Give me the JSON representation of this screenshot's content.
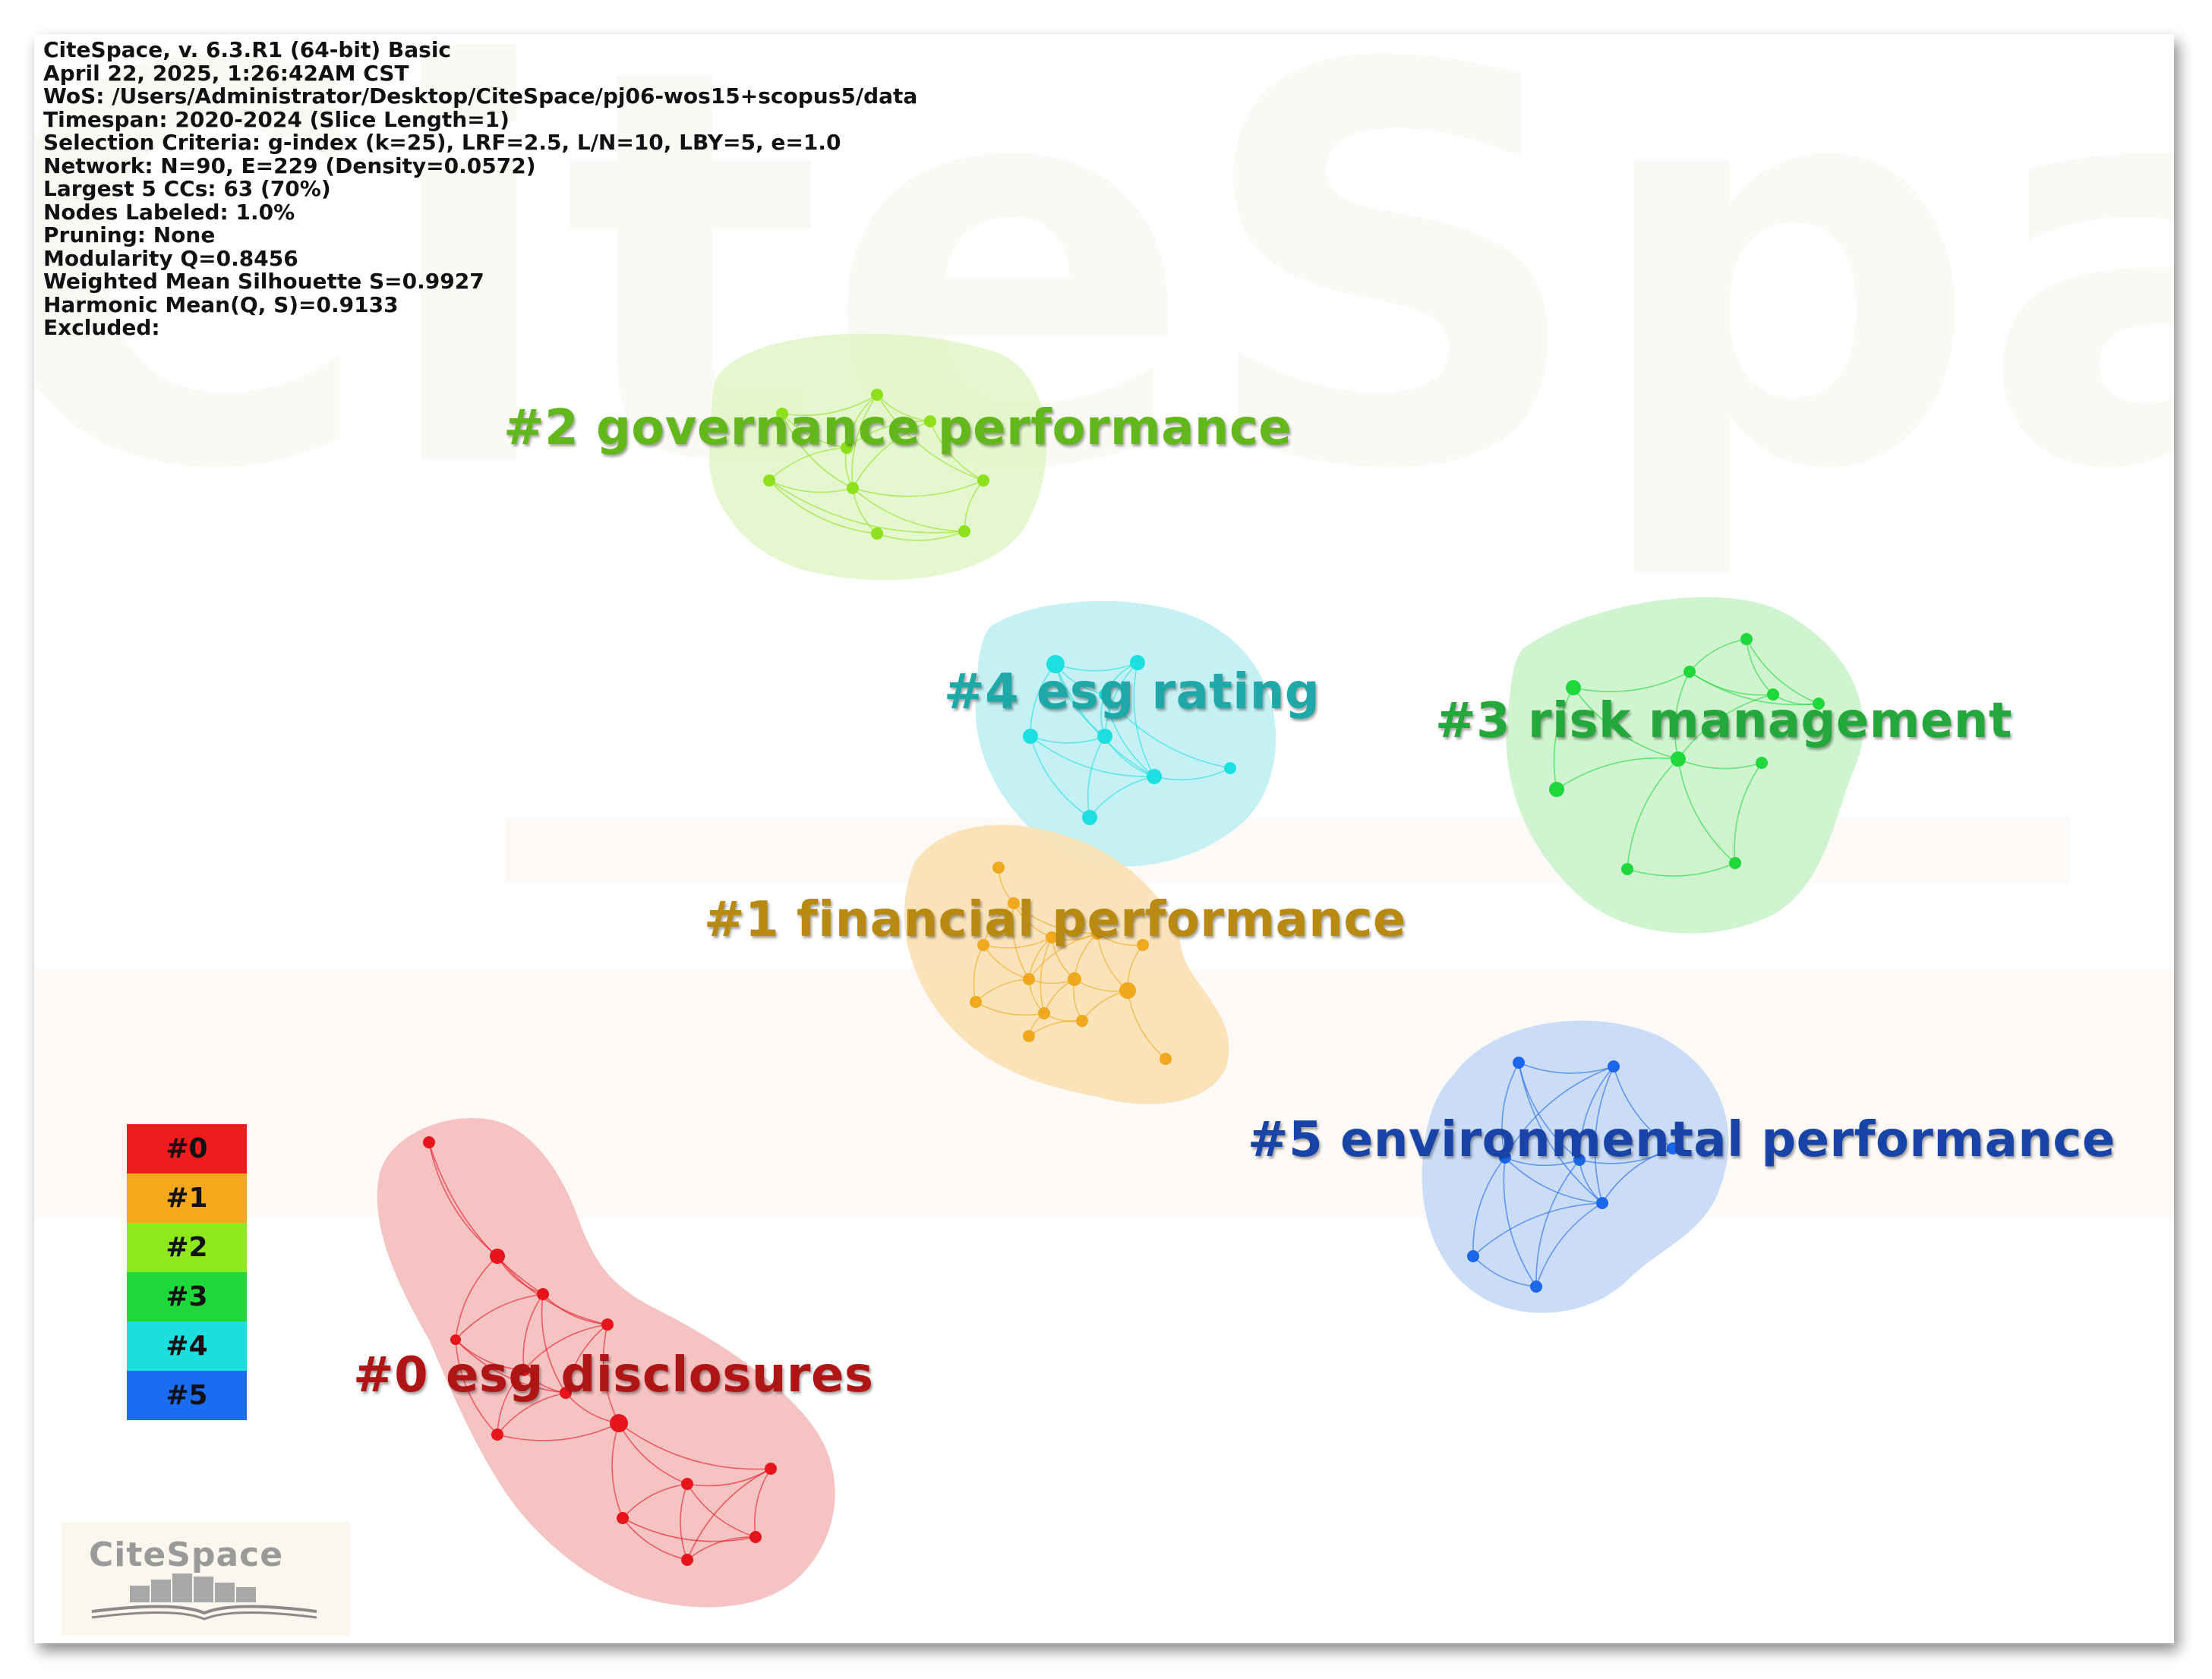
{
  "info": {
    "lines": [
      "CiteSpace, v. 6.3.R1 (64-bit) Basic",
      "April 22, 2025, 1:26:42AM CST",
      "WoS: /Users/Administrator/Desktop/CiteSpace/pj06-wos15+scopus5/data",
      "Timespan: 2020-2024 (Slice Length=1)",
      "Selection Criteria: g-index (k=25), LRF=2.5, L/N=10, LBY=5, e=1.0",
      "Network: N=90, E=229 (Density=0.0572)",
      "Largest 5 CCs: 63 (70%)",
      "Nodes Labeled: 1.0%",
      "Pruning: None",
      "Modularity Q=0.8456",
      "Weighted Mean Silhouette S=0.9927",
      "Harmonic Mean(Q, S)=0.9133",
      "Excluded:"
    ]
  },
  "clusters": [
    {
      "id": "0",
      "label": "#0 esg disclosures",
      "color": "#e8141c",
      "label_color": "#b01515",
      "fill": "#f4b4b4"
    },
    {
      "id": "1",
      "label": "#1 financial performance",
      "color": "#f0a81e",
      "label_color": "#b88a12",
      "fill": "#f9deb0"
    },
    {
      "id": "2",
      "label": "#2 governance performance",
      "color": "#8ee01c",
      "label_color": "#62b81a",
      "fill": "#dff5c2"
    },
    {
      "id": "3",
      "label": "#3 risk management",
      "color": "#1ed83c",
      "label_color": "#24a83c",
      "fill": "#c8f2c8"
    },
    {
      "id": "4",
      "label": "#4 esg rating",
      "color": "#1ce0e0",
      "label_color": "#1ea8a8",
      "fill": "#bff0f4"
    },
    {
      "id": "5",
      "label": "#5 environmental performance",
      "color": "#1c66ee",
      "label_color": "#1844a8",
      "fill": "#c4d8f6"
    }
  ],
  "legend": {
    "items": [
      {
        "label": "#0",
        "color": "#ee1c1c"
      },
      {
        "label": "#1",
        "color": "#f6a81c"
      },
      {
        "label": "#2",
        "color": "#8ee81c"
      },
      {
        "label": "#3",
        "color": "#1ed83c"
      },
      {
        "label": "#4",
        "color": "#1cdedc"
      },
      {
        "label": "#5",
        "color": "#1a6cf2"
      }
    ]
  },
  "logo": {
    "text": "CiteSpace"
  }
}
